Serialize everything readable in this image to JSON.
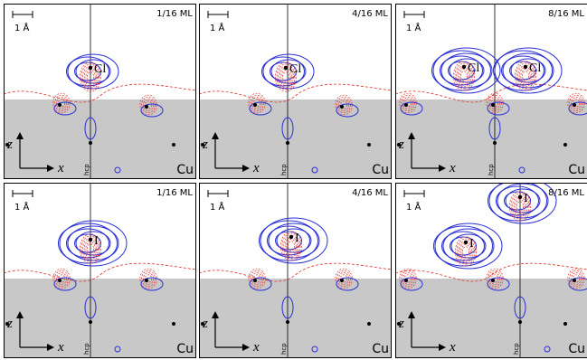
{
  "panels": [
    {
      "coverage": "1/16 ML",
      "adsorbates": [
        "Cl"
      ],
      "scale": "1 Å",
      "substrate": "Cu",
      "x_axis": "x",
      "z_axis": "z",
      "site": "hcp"
    },
    {
      "coverage": "4/16 ML",
      "adsorbates": [
        "Cl"
      ],
      "scale": "1 Å",
      "substrate": "Cu",
      "x_axis": "x",
      "z_axis": "z",
      "site": "hcp"
    },
    {
      "coverage": "8/16 ML",
      "adsorbates": [
        "Cl",
        "Cl"
      ],
      "scale": "1 Å",
      "substrate": "Cu",
      "x_axis": "x",
      "z_axis": "z",
      "site": "hcp"
    },
    {
      "coverage": "1/16 ML",
      "adsorbates": [
        "I"
      ],
      "scale": "1 Å",
      "substrate": "Cu",
      "x_axis": "x",
      "z_axis": "z",
      "site": "hcp"
    },
    {
      "coverage": "4/16 ML",
      "adsorbates": [
        "I"
      ],
      "scale": "1 Å",
      "substrate": "Cu",
      "x_axis": "x",
      "z_axis": "z",
      "site": "hcp"
    },
    {
      "coverage": "8/16 ML",
      "adsorbates": [
        "I",
        "I"
      ],
      "scale": "1 Å",
      "substrate": "Cu",
      "x_axis": "x",
      "z_axis": "z",
      "site": "hcp"
    }
  ]
}
